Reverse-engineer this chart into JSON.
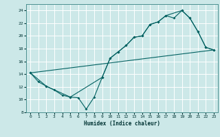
{
  "xlabel": "Humidex (Indice chaleur)",
  "background_color": "#cce8e8",
  "grid_color": "#ffffff",
  "line_color": "#006060",
  "xlim": [
    -0.5,
    23.5
  ],
  "ylim": [
    8,
    25
  ],
  "xticks": [
    0,
    1,
    2,
    3,
    4,
    5,
    6,
    7,
    8,
    9,
    10,
    11,
    12,
    13,
    14,
    15,
    16,
    17,
    18,
    19,
    20,
    21,
    22,
    23
  ],
  "yticks": [
    8,
    10,
    12,
    14,
    16,
    18,
    20,
    22,
    24
  ],
  "line1_x": [
    0,
    1,
    2,
    3,
    4,
    5,
    6,
    7,
    8,
    9,
    10,
    11,
    12,
    13,
    14,
    15,
    16,
    17,
    18,
    19,
    20,
    21,
    22,
    23
  ],
  "line1_y": [
    14.2,
    12.8,
    12.1,
    11.5,
    10.7,
    10.4,
    10.3,
    8.5,
    10.4,
    13.5,
    16.5,
    17.5,
    18.5,
    19.8,
    20.0,
    21.8,
    22.2,
    23.2,
    22.8,
    24.0,
    22.8,
    20.7,
    18.2,
    17.8
  ],
  "line2_x": [
    0,
    2,
    5,
    9,
    10,
    11,
    12,
    13,
    14,
    15,
    16,
    17,
    19,
    20,
    21,
    22,
    23
  ],
  "line2_y": [
    14.2,
    12.1,
    10.4,
    13.5,
    16.5,
    17.5,
    18.5,
    19.8,
    20.0,
    21.8,
    22.2,
    23.2,
    24.0,
    22.8,
    20.7,
    18.2,
    17.8
  ],
  "line3_x": [
    0,
    23
  ],
  "line3_y": [
    14.2,
    17.8
  ]
}
